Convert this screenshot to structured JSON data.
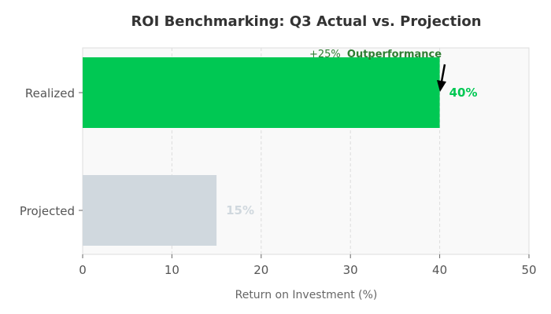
{
  "chart_data": {
    "type": "bar",
    "orientation": "horizontal",
    "title": "ROI Benchmarking: Q3 Actual vs. Projection",
    "xlabel": "Return on Investment (%)",
    "ylabel": "",
    "xlim": [
      0,
      50
    ],
    "xticks": [
      "0",
      "10",
      "20",
      "30",
      "40",
      "50"
    ],
    "grid": "vertical dashed",
    "categories": [
      "Realized",
      "Projected"
    ],
    "values": [
      40,
      15
    ],
    "value_labels": [
      "40%",
      "15%"
    ],
    "bar_colors": [
      "#00c853",
      "#d0d8de"
    ],
    "value_label_colors": [
      "#00c853",
      "#d0d8de"
    ],
    "annotation": {
      "prefix": "+25%",
      "text": "Outperformance",
      "color": "#2e7d32",
      "target_category": "Realized",
      "target_value": 40
    }
  }
}
